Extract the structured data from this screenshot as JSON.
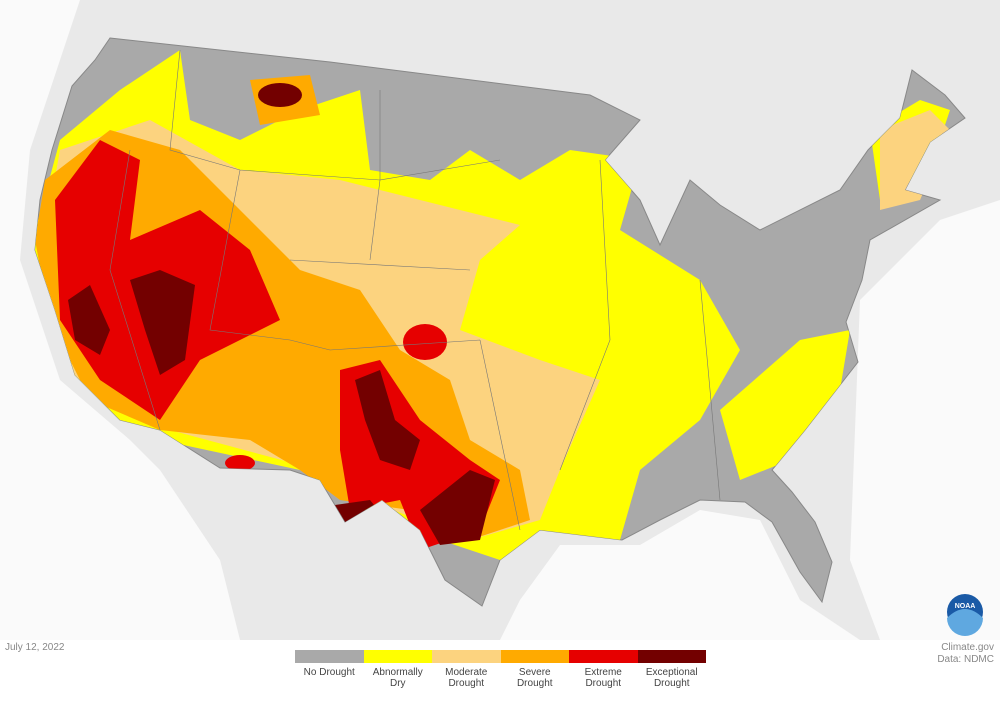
{
  "date": "July 12, 2022",
  "legend": [
    {
      "label": "No Drought",
      "color": "#a9a9a9"
    },
    {
      "label": "Abnormally Dry",
      "color": "#ffff00"
    },
    {
      "label": "Moderate Drought",
      "color": "#fcd37f"
    },
    {
      "label": "Severe Drought",
      "color": "#ffaa00"
    },
    {
      "label": "Extreme Drought",
      "color": "#e60000"
    },
    {
      "label": "Exceptional Drought",
      "color": "#730000"
    }
  ],
  "credits": [
    "Climate.gov",
    "Data: NDMC"
  ],
  "logo": "NOAA"
}
